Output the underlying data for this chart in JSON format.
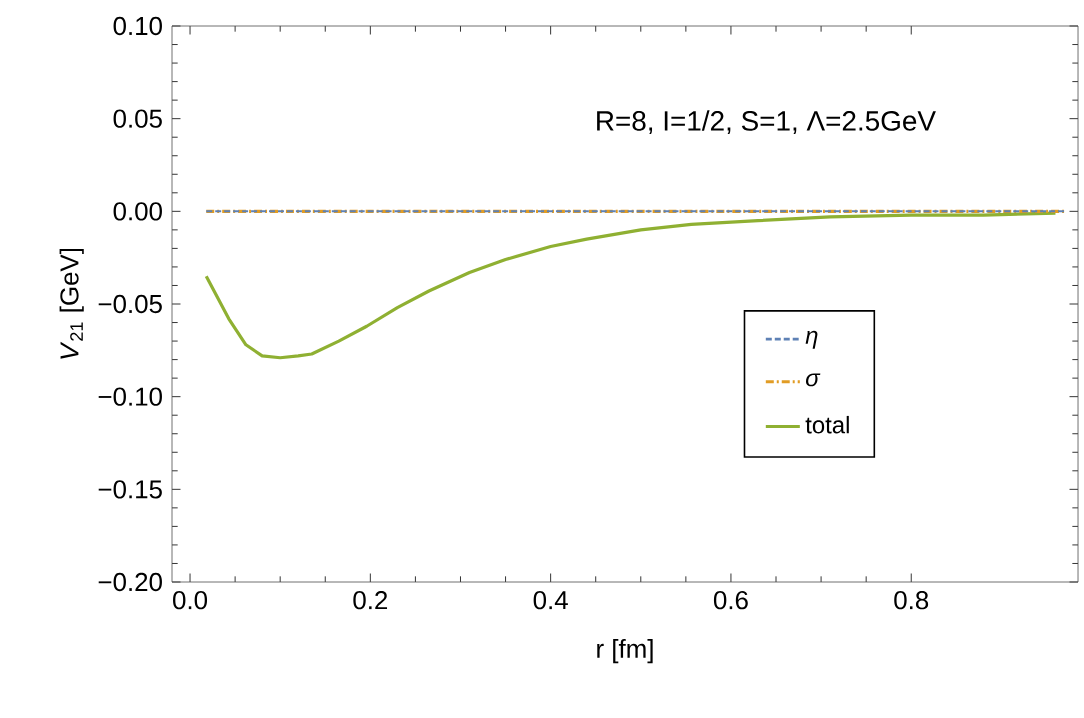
{
  "chart_data": {
    "type": "line",
    "xlabel": "r [fm]",
    "ylabel": "*V*$_{21}$ [GeV]",
    "annotations": [
      "R=8, I=1/2, S=1, Λ=2.5GeV"
    ],
    "xlim": [
      -0.02,
      0.985
    ],
    "ylim": [
      -0.2,
      0.1
    ],
    "xticks": [
      {
        "value": 0,
        "label": "0.0"
      },
      {
        "value": 0.2,
        "label": "0.2"
      },
      {
        "value": 0.4,
        "label": "0.4"
      },
      {
        "value": 0.6,
        "label": "0.6"
      },
      {
        "value": 0.8,
        "label": "0.8"
      }
    ],
    "yticks": [
      {
        "value": -0.2,
        "label": "−0.20"
      },
      {
        "value": -0.15,
        "label": "−0.15"
      },
      {
        "value": -0.1,
        "label": "−0.10"
      },
      {
        "value": -0.05,
        "label": "−0.05"
      },
      {
        "value": 0,
        "label": "0.00"
      },
      {
        "value": 0.05,
        "label": "0.05"
      },
      {
        "value": 0.1,
        "label": "0.10"
      }
    ],
    "legend": "bottom right",
    "grid": false,
    "marker": "none",
    "series": [
      {
        "name": "*η*",
        "color": "#5e81b5",
        "line_style": "dashed",
        "x": [
          0.018,
          0.2,
          0.4,
          0.6,
          0.8,
          0.97
        ],
        "values": [
          0,
          0,
          0,
          0,
          0,
          0
        ]
      },
      {
        "name": "*σ*",
        "color": "#e19c24",
        "line_style": "dashdot",
        "x": [
          0.018,
          0.2,
          0.4,
          0.6,
          0.8,
          0.97
        ],
        "values": [
          0,
          0,
          0,
          0,
          0,
          0
        ]
      },
      {
        "name": "total",
        "color": "#8fb032",
        "line_style": "solid",
        "x": [
          0.018,
          0.043,
          0.062,
          0.08,
          0.1,
          0.12,
          0.135,
          0.165,
          0.196,
          0.23,
          0.265,
          0.31,
          0.35,
          0.4,
          0.44,
          0.5,
          0.556,
          0.63,
          0.71,
          0.8,
          0.88,
          0.96
        ],
        "values": [
          -0.035,
          -0.058,
          -0.072,
          -0.078,
          -0.079,
          -0.078,
          -0.077,
          -0.07,
          -0.062,
          -0.052,
          -0.043,
          -0.033,
          -0.026,
          -0.019,
          -0.015,
          -0.01,
          -0.007,
          -0.005,
          -0.003,
          -0.002,
          -0.002,
          -0.001
        ]
      }
    ]
  }
}
